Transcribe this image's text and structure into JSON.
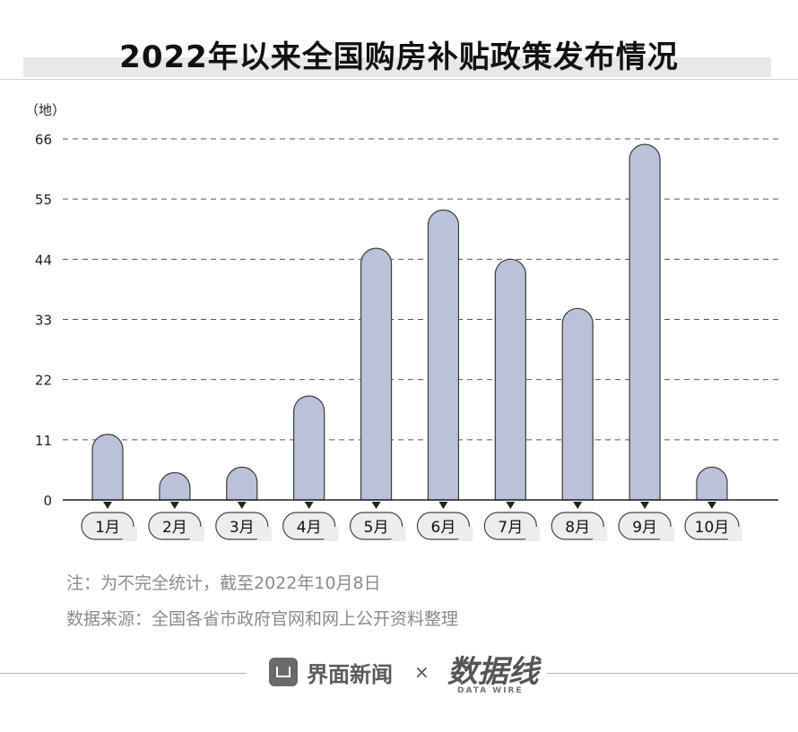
{
  "title": "2022年以来全国购房补贴政策发布情况",
  "chart_data": {
    "type": "bar",
    "title": "2022年以来全国购房补贴政策发布情况",
    "ylabel": "（地）",
    "xlabel": "",
    "ylim": [
      0,
      66
    ],
    "yticks": [
      0,
      11,
      22,
      33,
      44,
      55,
      66
    ],
    "grid": true,
    "categories": [
      "1月",
      "2月",
      "3月",
      "4月",
      "5月",
      "6月",
      "7月",
      "8月",
      "9月",
      "10月"
    ],
    "values": [
      12,
      5,
      6,
      19,
      46,
      53,
      44,
      35,
      65,
      6
    ],
    "bar_color": "#b9c2d8"
  },
  "notes": {
    "note": "注：为不完全统计，截至2022年10月8日",
    "source": "数据来源：全国各省市政府官网和网上公开资料整理"
  },
  "footer": {
    "brand": "界面新闻",
    "times": "×",
    "logo": "数据线",
    "logo_sub": "DATA WIRE"
  }
}
